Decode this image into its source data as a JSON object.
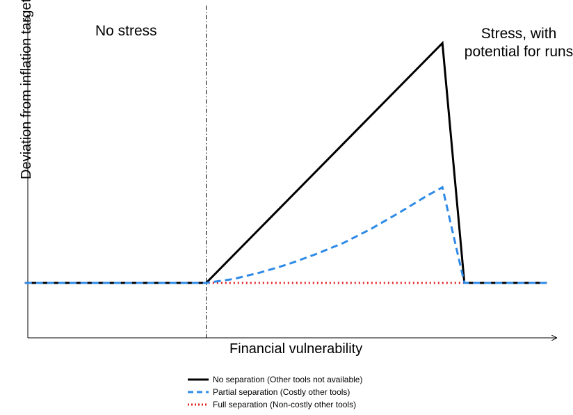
{
  "chart_data": {
    "type": "line",
    "title": "",
    "xlabel": "Financial vulnerability",
    "ylabel": "Deviation from inflation target",
    "region_labels": {
      "left": "No stress",
      "right_line1": "Stress, with",
      "right_line2": "potential for runs"
    },
    "xlim": [
      0,
      100
    ],
    "ylim": [
      0,
      100
    ],
    "threshold_x": 35,
    "series": [
      {
        "name": "No separation (Other tools not available)",
        "color": "#000000",
        "style": "solid",
        "x": [
          2,
          35,
          78,
          82,
          97
        ],
        "y": [
          21,
          21,
          100,
          21,
          21
        ]
      },
      {
        "name": "Partial separation (Costly other tools)",
        "color": "#2e8ae6",
        "style": "dashed",
        "x": [
          2,
          35,
          40,
          45,
          50,
          55,
          60,
          65,
          70,
          75,
          78,
          82,
          97
        ],
        "y": [
          21,
          21,
          22.3,
          24.5,
          27.2,
          30.5,
          34.2,
          38.8,
          44,
          49.5,
          52.5,
          21,
          21
        ]
      },
      {
        "name": "Full separation (Non-costly other tools)",
        "color": "#e02020",
        "style": "dotted",
        "x": [
          2,
          82
        ],
        "y": [
          21,
          21
        ]
      }
    ]
  }
}
